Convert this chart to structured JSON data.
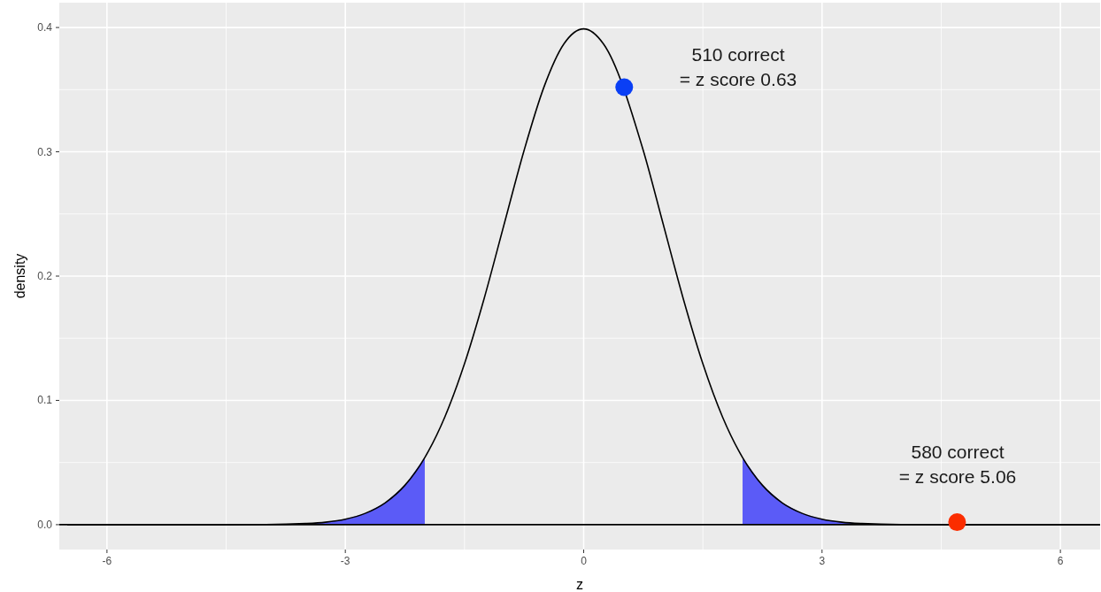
{
  "chart_data": {
    "type": "line",
    "xlabel": "z",
    "ylabel": "density",
    "xlim": [
      -6.6,
      6.5
    ],
    "ylim": [
      -0.02,
      0.42
    ],
    "xticks": [
      -6,
      -3,
      0,
      3,
      6
    ],
    "yticks": [
      {
        "value": 0,
        "label": "0.0"
      },
      0.1,
      0.2,
      0.3,
      0.4
    ],
    "grid": true,
    "ref_lines": [
      {
        "axis": "y",
        "value": 0,
        "color": "#000000"
      }
    ],
    "series": [
      {
        "type": "area",
        "color": "#5b5bf7",
        "x": [
          -6.5,
          -5,
          -4,
          -3.5,
          -3.25,
          -3,
          -2.75,
          -2.5,
          -2.25,
          -2
        ],
        "values": [
          0,
          0,
          0.0001,
          0.0009,
          0.002,
          0.0044,
          0.0091,
          0.0175,
          0.0317,
          0.054
        ]
      },
      {
        "type": "area",
        "color": "#5b5bf7",
        "x": [
          2,
          2.25,
          2.5,
          2.75,
          3,
          3.25,
          3.5,
          4,
          5,
          6.5
        ],
        "values": [
          0.054,
          0.0317,
          0.0175,
          0.0091,
          0.0044,
          0.002,
          0.0009,
          0.0001,
          0,
          0
        ]
      },
      {
        "color": "#000000",
        "x": [
          -6.5,
          -5,
          -4,
          -3.5,
          -3.25,
          -3,
          -2.75,
          -2.5,
          -2.25,
          -2,
          -1.75,
          -1.5,
          -1.25,
          -1,
          -0.75,
          -0.5,
          -0.25,
          0,
          0.25,
          0.75,
          1,
          1.25,
          1.5,
          1.75,
          2,
          2.25,
          2.5,
          2.75,
          3,
          3.25,
          3.5,
          4,
          5,
          6.5
        ],
        "values": [
          0,
          0,
          0.0001,
          0.0009,
          0.002,
          0.0044,
          0.0091,
          0.0175,
          0.0317,
          0.054,
          0.0863,
          0.1295,
          0.1826,
          0.242,
          0.3011,
          0.3521,
          0.3867,
          0.3989,
          0.3867,
          0.3011,
          0.242,
          0.1826,
          0.1295,
          0.0863,
          0.054,
          0.0317,
          0.0175,
          0.0091,
          0.0044,
          0.002,
          0.0009,
          0.0001,
          0,
          0
        ]
      },
      {
        "type": "scatter",
        "color": "#0a3ff5",
        "x": [
          0.51
        ],
        "values": [
          0.352
        ]
      },
      {
        "type": "scatter",
        "color": "#fb2d00",
        "x": [
          4.7
        ],
        "values": [
          0.002
        ]
      }
    ],
    "annotations": [
      "510 correct\n= z score 0.63",
      "580 correct\n= z score 5.06"
    ]
  }
}
